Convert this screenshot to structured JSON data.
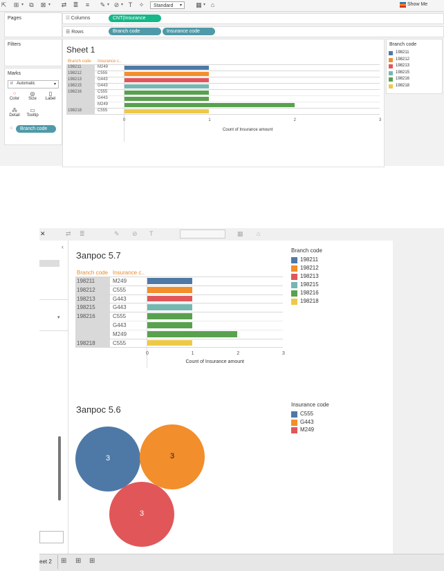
{
  "colors": {
    "198211": "#4e79a7",
    "198212": "#f28e2b",
    "198213": "#e15759",
    "198215": "#76b7b2",
    "198216": "#59a14f",
    "198218": "#edc948",
    "C555": "#4e79a7",
    "G443": "#f28e2b",
    "M249": "#e15759",
    "accent_header": "#e8892b",
    "pill_green": "#16b788",
    "pill_teal": "#4f9aa8"
  },
  "toolbar": {
    "fit_select": "Standard",
    "show_me": "Show Me"
  },
  "side": {
    "pages": "Pages",
    "filters": "Filters",
    "marks": "Marks",
    "marks_type": "Automatic",
    "marks_cards": [
      "Color",
      "Size",
      "Label",
      "Detail",
      "Tooltip"
    ],
    "color_pill": "Branch code"
  },
  "shelves": {
    "columns_label": "Columns",
    "columns_pill": "CNT(Insurance amou..",
    "rows_label": "Rows",
    "rows_pills": [
      "Branch code",
      "Insurance code"
    ]
  },
  "sheet1": {
    "title": "Sheet 1",
    "col_headers": [
      "Branch code",
      "Insurance c.."
    ],
    "legend_title": "Branch code",
    "legend": [
      "198211",
      "198212",
      "198213",
      "198215",
      "198216",
      "198218"
    ]
  },
  "chart_data": [
    {
      "type": "bar",
      "title": "Sheet 1",
      "orientation": "horizontal",
      "row_headers": [
        "Branch code",
        "Insurance c.."
      ],
      "rows": [
        {
          "branch": "198211",
          "insurance": "M249",
          "value": 1
        },
        {
          "branch": "198212",
          "insurance": "C555",
          "value": 1
        },
        {
          "branch": "198213",
          "insurance": "G443",
          "value": 1
        },
        {
          "branch": "198215",
          "insurance": "G443",
          "value": 1
        },
        {
          "branch": "198216",
          "insurance": "C555",
          "value": 1
        },
        {
          "branch": "",
          "insurance": "G443",
          "value": 1
        },
        {
          "branch": "",
          "insurance": "M249",
          "value": 2
        },
        {
          "branch": "198218",
          "insurance": "C555",
          "value": 1
        }
      ],
      "xlabel": "Count of Insurance amount",
      "xlim": [
        0,
        3
      ],
      "xticks": [
        "0",
        "1",
        "2",
        "3"
      ],
      "legend_title": "Branch code",
      "legend": [
        "198211",
        "198212",
        "198213",
        "198215",
        "198216",
        "198218"
      ]
    },
    {
      "type": "bar",
      "title": "Запрос 5.7",
      "orientation": "horizontal",
      "row_headers": [
        "Branch code",
        "Insurance c.."
      ],
      "rows": [
        {
          "branch": "198211",
          "insurance": "M249",
          "value": 1
        },
        {
          "branch": "198212",
          "insurance": "C555",
          "value": 1
        },
        {
          "branch": "198213",
          "insurance": "G443",
          "value": 1
        },
        {
          "branch": "198215",
          "insurance": "G443",
          "value": 1
        },
        {
          "branch": "198216",
          "insurance": "C555",
          "value": 1
        },
        {
          "branch": "",
          "insurance": "G443",
          "value": 1
        },
        {
          "branch": "",
          "insurance": "M249",
          "value": 2
        },
        {
          "branch": "198218",
          "insurance": "C555",
          "value": 1
        }
      ],
      "xlabel": "Count of Insurance amount",
      "xlim": [
        0,
        3
      ],
      "xticks": [
        "0",
        "1",
        "2",
        "3"
      ],
      "legend_title": "Branch code",
      "legend": [
        "198211",
        "198212",
        "198213",
        "198215",
        "198216",
        "198218"
      ]
    },
    {
      "type": "bubble",
      "title": "Запрос 5.6",
      "bubbles": [
        {
          "category": "C555",
          "value": 3,
          "label": "3"
        },
        {
          "category": "G443",
          "value": 3,
          "label": "3"
        },
        {
          "category": "M249",
          "value": 3,
          "label": "3"
        }
      ],
      "legend_title": "Insurance code",
      "legend": [
        "C555",
        "G443",
        "M249"
      ]
    }
  ],
  "bottom": {
    "tabs": [
      "eet 2"
    ]
  }
}
